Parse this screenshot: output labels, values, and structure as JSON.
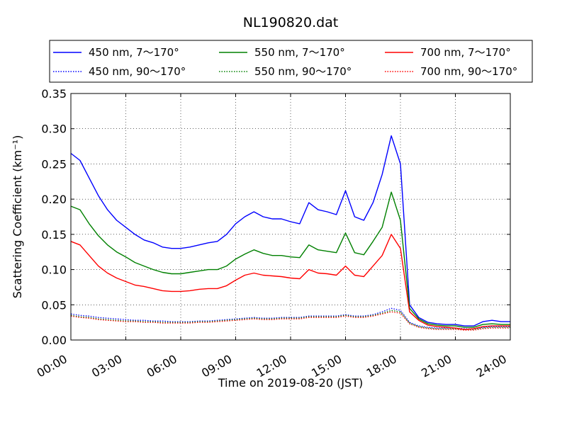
{
  "chart_data": {
    "type": "line",
    "title": "NL190820.dat",
    "xlabel": "Time on 2019-08-20 (JST)",
    "ylabel": "Scattering Coefficient (km⁻¹)",
    "xlim": [
      "2019-08-20 00:00",
      "2019-08-21 00:00"
    ],
    "ylim": [
      0,
      0.35
    ],
    "grid": true,
    "legend_position": "top-center, above plot",
    "x_tick_labels": [
      "00:00",
      "03:00",
      "06:00",
      "09:00",
      "12:00",
      "15:00",
      "18:00",
      "21:00",
      "24:00"
    ],
    "y_tick_labels": [
      "0.00",
      "0.05",
      "0.10",
      "0.15",
      "0.20",
      "0.25",
      "0.30",
      "0.35"
    ],
    "y_ticks": [
      0,
      0.05,
      0.1,
      0.15,
      0.2,
      0.25,
      0.3,
      0.35
    ],
    "x": [
      "00:00",
      "00:30",
      "01:00",
      "01:30",
      "02:00",
      "02:30",
      "03:00",
      "03:30",
      "04:00",
      "04:30",
      "05:00",
      "05:30",
      "06:00",
      "06:30",
      "07:00",
      "07:30",
      "08:00",
      "08:30",
      "09:00",
      "09:30",
      "10:00",
      "10:30",
      "11:00",
      "11:30",
      "12:00",
      "12:30",
      "13:00",
      "13:30",
      "14:00",
      "14:30",
      "15:00",
      "15:30",
      "16:00",
      "16:30",
      "17:00",
      "17:30",
      "18:00",
      "18:30",
      "19:00",
      "19:30",
      "20:00",
      "20:30",
      "21:00",
      "21:30",
      "22:00",
      "22:30",
      "23:00",
      "23:30",
      "24:00"
    ],
    "series": [
      {
        "name": "450 nm, 7～170°",
        "color": "#0000ff",
        "style": "solid",
        "values": [
          0.265,
          0.255,
          0.23,
          0.205,
          0.185,
          0.17,
          0.16,
          0.15,
          0.142,
          0.138,
          0.132,
          0.13,
          0.13,
          0.132,
          0.135,
          0.138,
          0.14,
          0.15,
          0.165,
          0.175,
          0.182,
          0.175,
          0.172,
          0.172,
          0.168,
          0.165,
          0.195,
          0.185,
          0.182,
          0.178,
          0.212,
          0.175,
          0.17,
          0.195,
          0.235,
          0.29,
          0.25,
          0.05,
          0.032,
          0.025,
          0.023,
          0.022,
          0.022,
          0.02,
          0.02,
          0.026,
          0.028,
          0.026,
          0.026
        ]
      },
      {
        "name": "450 nm, 90～170°",
        "color": "#0000ff",
        "style": "dotted",
        "values": [
          0.037,
          0.035,
          0.034,
          0.032,
          0.031,
          0.03,
          0.029,
          0.028,
          0.028,
          0.027,
          0.027,
          0.026,
          0.026,
          0.026,
          0.027,
          0.027,
          0.028,
          0.029,
          0.03,
          0.031,
          0.032,
          0.031,
          0.031,
          0.032,
          0.032,
          0.032,
          0.034,
          0.034,
          0.034,
          0.034,
          0.036,
          0.034,
          0.034,
          0.036,
          0.04,
          0.045,
          0.042,
          0.025,
          0.02,
          0.018,
          0.017,
          0.017,
          0.017,
          0.016,
          0.016,
          0.018,
          0.019,
          0.019,
          0.019
        ]
      },
      {
        "name": "550 nm, 7～170°",
        "color": "#008000",
        "style": "solid",
        "values": [
          0.19,
          0.185,
          0.165,
          0.148,
          0.135,
          0.125,
          0.118,
          0.11,
          0.105,
          0.1,
          0.096,
          0.094,
          0.094,
          0.096,
          0.098,
          0.1,
          0.1,
          0.105,
          0.115,
          0.122,
          0.128,
          0.123,
          0.12,
          0.12,
          0.118,
          0.117,
          0.135,
          0.128,
          0.126,
          0.124,
          0.152,
          0.124,
          0.121,
          0.14,
          0.16,
          0.21,
          0.17,
          0.045,
          0.03,
          0.023,
          0.021,
          0.02,
          0.02,
          0.018,
          0.018,
          0.022,
          0.023,
          0.022,
          0.022
        ]
      },
      {
        "name": "550 nm, 90～170°",
        "color": "#008000",
        "style": "dotted",
        "values": [
          0.035,
          0.033,
          0.032,
          0.03,
          0.029,
          0.028,
          0.027,
          0.027,
          0.026,
          0.026,
          0.025,
          0.025,
          0.025,
          0.025,
          0.026,
          0.026,
          0.027,
          0.028,
          0.029,
          0.03,
          0.031,
          0.03,
          0.03,
          0.031,
          0.031,
          0.031,
          0.033,
          0.033,
          0.033,
          0.033,
          0.035,
          0.033,
          0.033,
          0.035,
          0.038,
          0.042,
          0.04,
          0.024,
          0.019,
          0.017,
          0.016,
          0.016,
          0.016,
          0.015,
          0.015,
          0.017,
          0.018,
          0.018,
          0.018
        ]
      },
      {
        "name": "700 nm, 7～170°",
        "color": "#ff0000",
        "style": "solid",
        "values": [
          0.14,
          0.135,
          0.12,
          0.105,
          0.095,
          0.088,
          0.083,
          0.078,
          0.076,
          0.073,
          0.07,
          0.069,
          0.069,
          0.07,
          0.072,
          0.073,
          0.073,
          0.077,
          0.085,
          0.092,
          0.095,
          0.092,
          0.091,
          0.09,
          0.088,
          0.087,
          0.1,
          0.095,
          0.094,
          0.092,
          0.105,
          0.092,
          0.09,
          0.105,
          0.12,
          0.15,
          0.13,
          0.04,
          0.028,
          0.021,
          0.019,
          0.018,
          0.017,
          0.015,
          0.016,
          0.019,
          0.02,
          0.02,
          0.02
        ]
      },
      {
        "name": "700 nm, 90～170°",
        "color": "#ff0000",
        "style": "dotted",
        "values": [
          0.034,
          0.032,
          0.031,
          0.029,
          0.028,
          0.027,
          0.026,
          0.026,
          0.025,
          0.025,
          0.024,
          0.024,
          0.024,
          0.024,
          0.025,
          0.025,
          0.026,
          0.027,
          0.028,
          0.029,
          0.03,
          0.029,
          0.029,
          0.03,
          0.03,
          0.03,
          0.032,
          0.032,
          0.032,
          0.032,
          0.034,
          0.032,
          0.032,
          0.034,
          0.037,
          0.04,
          0.038,
          0.023,
          0.018,
          0.016,
          0.015,
          0.015,
          0.015,
          0.014,
          0.014,
          0.016,
          0.017,
          0.017,
          0.017
        ]
      }
    ]
  }
}
